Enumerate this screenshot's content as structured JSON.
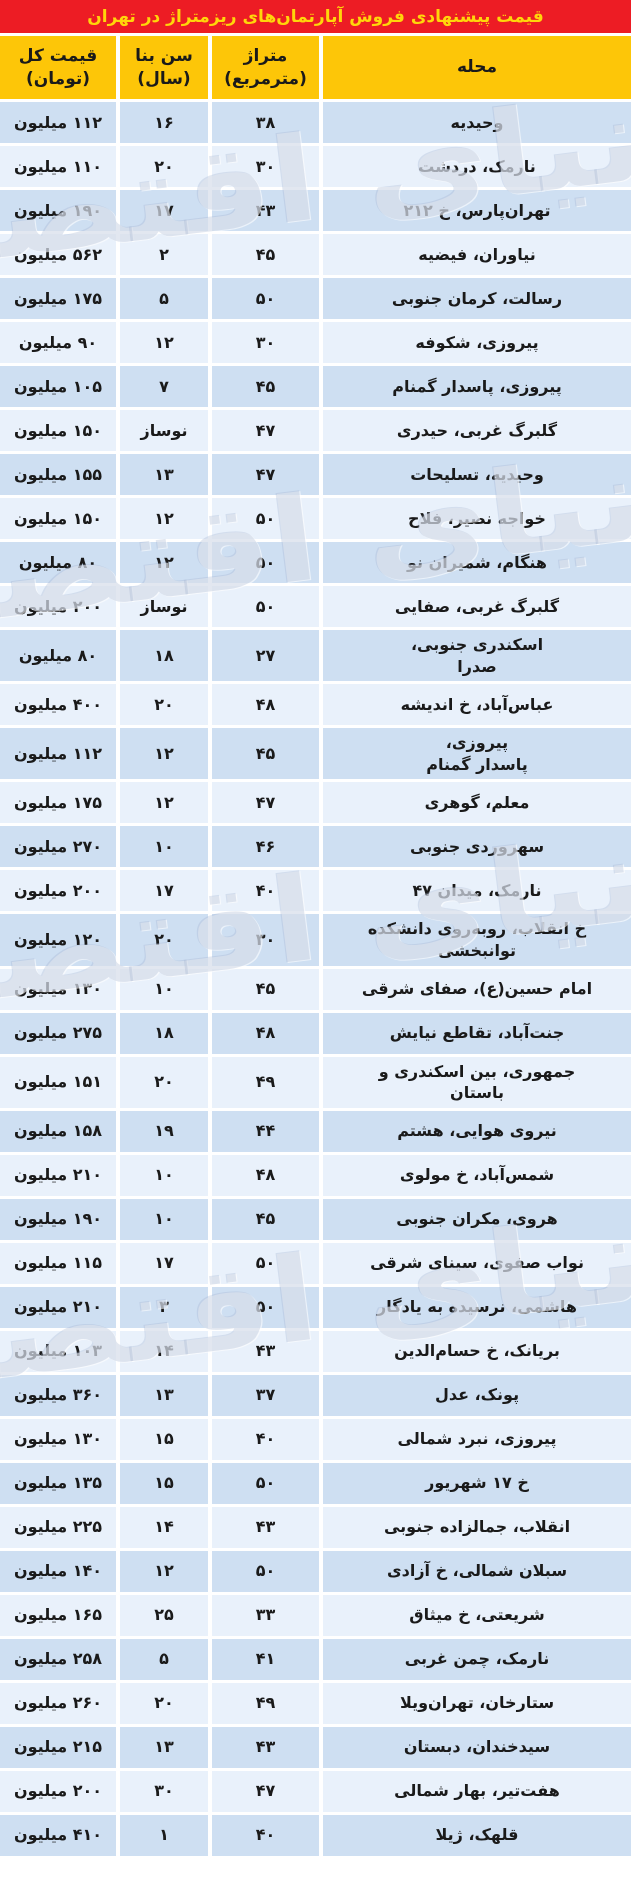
{
  "title": "قیمت پیشنهادی فروش آپارتمان‌های ریزمتراژ در تهران",
  "watermark": {
    "text": "دنیای اقتصاد"
  },
  "colors": {
    "title_bar_red": "#ed1c24",
    "title_text_yellow": "#ffd60a",
    "header_yellow": "#fdc608",
    "row_dark_blue": "#cedff2",
    "row_light_blue": "#e9f1fb",
    "text_black": "#1a1a1a"
  },
  "columns": {
    "neighborhood": "محله",
    "area": "متراژ (مترمربع)",
    "age": "سن بنا (سال)",
    "price": "قیمت کل\n(تومان)"
  },
  "rows": [
    {
      "neighborhood": "وحیدیه",
      "area": "۳۸",
      "age": "۱۶",
      "price": "۱۱۲ میلیون"
    },
    {
      "neighborhood": "نارمک، دردشت",
      "area": "۳۰",
      "age": "۲۰",
      "price": "۱۱۰ میلیون"
    },
    {
      "neighborhood": "تهران‌پارس، خ ۲۱۲",
      "area": "۴۳",
      "age": "۱۷",
      "price": "۱۹۰ میلیون"
    },
    {
      "neighborhood": "نیاوران، فیضیه",
      "area": "۴۵",
      "age": "۲",
      "price": "۵۶۲ میلیون"
    },
    {
      "neighborhood": "رسالت، کرمان جنوبی",
      "area": "۵۰",
      "age": "۵",
      "price": "۱۷۵ میلیون"
    },
    {
      "neighborhood": "پیروزی، شکوفه",
      "area": "۳۰",
      "age": "۱۲",
      "price": "۹۰ میلیون"
    },
    {
      "neighborhood": "پیروزی، پاسدار گمنام",
      "area": "۴۵",
      "age": "۷",
      "price": "۱۰۵ میلیون"
    },
    {
      "neighborhood": "گلبرگ غربی، حیدری",
      "area": "۴۷",
      "age": "نوساز",
      "price": "۱۵۰ میلیون"
    },
    {
      "neighborhood": "وحیدیه، تسلیحات",
      "area": "۴۷",
      "age": "۱۳",
      "price": "۱۵۵ میلیون"
    },
    {
      "neighborhood": "خواجه نصیر، فلاح",
      "area": "۵۰",
      "age": "۱۲",
      "price": "۱۵۰ میلیون"
    },
    {
      "neighborhood": "هنگام، شمیران نو",
      "area": "۵۰",
      "age": "۱۲",
      "price": "۸۰ میلیون"
    },
    {
      "neighborhood": "گلبرگ غربی، صفایی",
      "area": "۵۰",
      "age": "نوساز",
      "price": "۲۰۰ میلیون"
    },
    {
      "neighborhood": "اسکندری جنوبی،\nصدرا",
      "area": "۲۷",
      "age": "۱۸",
      "price": "۸۰ میلیون"
    },
    {
      "neighborhood": "عباس‌آباد، خ اندیشه",
      "area": "۴۸",
      "age": "۲۰",
      "price": "۴۰۰ میلیون"
    },
    {
      "neighborhood": "پیروزی،\nپاسدار گمنام",
      "area": "۴۵",
      "age": "۱۲",
      "price": "۱۱۲ میلیون"
    },
    {
      "neighborhood": "معلم، گوهری",
      "area": "۴۷",
      "age": "۱۲",
      "price": "۱۷۵ میلیون"
    },
    {
      "neighborhood": "سهروردی جنوبی",
      "area": "۴۶",
      "age": "۱۰",
      "price": "۲۷۰ میلیون"
    },
    {
      "neighborhood": "نارمک، میدان ۴۷",
      "area": "۴۰",
      "age": "۱۷",
      "price": "۲۰۰ میلیون"
    },
    {
      "neighborhood": "خ انقلاب، روبه‌روی دانشکده\nتوانبخشی",
      "area": "۳۰",
      "age": "۲۰",
      "price": "۱۲۰ میلیون"
    },
    {
      "neighborhood": "امام حسین(ع)، صفای شرقی",
      "area": "۴۵",
      "age": "۱۰",
      "price": "۱۳۰ میلیون"
    },
    {
      "neighborhood": "جنت‌آباد، تقاطع نیایش",
      "area": "۴۸",
      "age": "۱۸",
      "price": "۲۷۵ میلیون"
    },
    {
      "neighborhood": "جمهوری، بین اسکندری و\nباستان",
      "area": "۴۹",
      "age": "۲۰",
      "price": "۱۵۱ میلیون"
    },
    {
      "neighborhood": "نیروی هوایی، هشتم",
      "area": "۴۴",
      "age": "۱۹",
      "price": "۱۵۸ میلیون"
    },
    {
      "neighborhood": "شمس‌آباد، خ مولوی",
      "area": "۴۸",
      "age": "۱۰",
      "price": "۲۱۰ میلیون"
    },
    {
      "neighborhood": "هروی، مکران جنوبی",
      "area": "۴۵",
      "age": "۱۰",
      "price": "۱۹۰ میلیون"
    },
    {
      "neighborhood": "نواب صفوی، سینای شرقی",
      "area": "۵۰",
      "age": "۱۷",
      "price": "۱۱۵ میلیون"
    },
    {
      "neighborhood": "هاشمی، نرسیده به یادگار",
      "area": "۵۰",
      "age": "۳",
      "price": "۲۱۰ میلیون"
    },
    {
      "neighborhood": "بریانک،  خ حسام‌الدین",
      "area": "۴۳",
      "age": "۱۴",
      "price": "۱۰۳ میلیون"
    },
    {
      "neighborhood": "پونک، عدل",
      "area": "۳۷",
      "age": "۱۳",
      "price": "۳۶۰ میلیون"
    },
    {
      "neighborhood": "پیروزی، نبرد شمالی",
      "area": "۴۰",
      "age": "۱۵",
      "price": "۱۳۰ میلیون"
    },
    {
      "neighborhood": "خ ۱۷ شهریور",
      "area": "۵۰",
      "age": "۱۵",
      "price": "۱۳۵ میلیون"
    },
    {
      "neighborhood": "انقلاب، جمالزاده جنوبی",
      "area": "۴۳",
      "age": "۱۴",
      "price": "۲۲۵ میلیون"
    },
    {
      "neighborhood": "سبلان شمالی، خ آزادی",
      "area": "۵۰",
      "age": "۱۲",
      "price": "۱۴۰ میلیون"
    },
    {
      "neighborhood": "شریعتی، خ میثاق",
      "area": "۳۳",
      "age": "۲۵",
      "price": "۱۶۵ میلیون"
    },
    {
      "neighborhood": "نارمک، چمن غربی",
      "area": "۴۱",
      "age": "۵",
      "price": "۲۵۸ میلیون"
    },
    {
      "neighborhood": "ستارخان، تهران‌ویلا",
      "area": "۴۹",
      "age": "۲۰",
      "price": "۲۶۰ میلیون"
    },
    {
      "neighborhood": "سیدخندان، دبستان",
      "area": "۴۳",
      "age": "۱۳",
      "price": "۲۱۵ میلیون"
    },
    {
      "neighborhood": "هفت‌تیر، بهار شمالی",
      "area": "۴۷",
      "age": "۳۰",
      "price": "۲۰۰ میلیون"
    },
    {
      "neighborhood": "قلهک، ژیلا",
      "area": "۴۰",
      "age": "۱",
      "price": "۴۱۰ میلیون"
    }
  ]
}
